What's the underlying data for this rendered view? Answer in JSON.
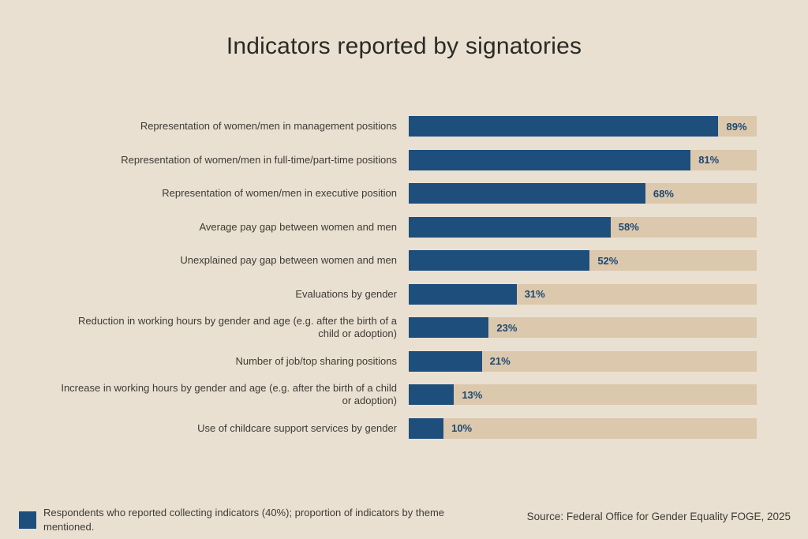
{
  "title": "Indicators reported by signatories",
  "chart_data": {
    "type": "bar",
    "orientation": "horizontal",
    "title": "Indicators reported by signatories",
    "categories": [
      "Representation of women/men in management positions",
      "Representation of women/men in full-time/part-time positions",
      "Representation of women/men in executive position",
      "Average pay gap between women and men",
      "Unexplained pay gap between women and men",
      "Evaluations by gender",
      "Reduction in working hours by gender and age (e.g. after the birth of a child or adoption)",
      "Number of job/top sharing positions",
      "Increase in working hours by gender and age (e.g. after the birth of a child or adoption)",
      "Use of childcare support services by gender"
    ],
    "values": [
      89,
      81,
      68,
      58,
      52,
      31,
      23,
      21,
      13,
      10
    ],
    "value_suffix": "%",
    "xlim": [
      0,
      100
    ],
    "grid": false,
    "legend_position": "bottom-left",
    "colors": {
      "bar": "#1d4e7c",
      "track": "#dbc8ad",
      "value_label": "#1d4871",
      "background": "#e9e0d1"
    }
  },
  "legend": {
    "label": "Respondents who reported collecting indicators (40%); proportion of indicators by theme mentioned."
  },
  "source": "Source: Federal Office for Gender Equality FOGE, 2025"
}
